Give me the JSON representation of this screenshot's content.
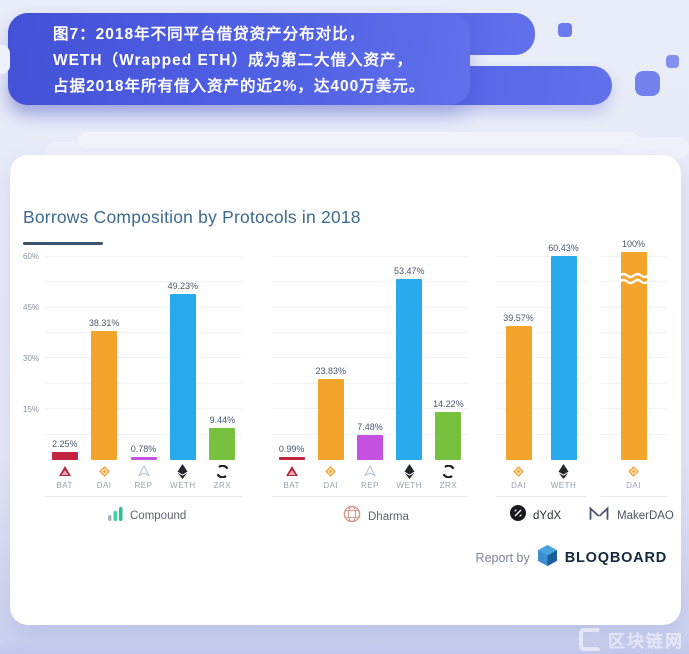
{
  "header": {
    "lines": [
      "图7：2018年不同平台借贷资产分布对比，",
      "WETH（Wrapped ETH）成为第二大借入资产，",
      "占据2018年所有借入资产的近2%，达400万美元。"
    ],
    "bg_color": "#4351d7"
  },
  "card": {
    "title": "Borrows Composition by Protocols in 2018"
  },
  "axis": {
    "ticks": [
      "60%",
      "45%",
      "30%",
      "15%"
    ]
  },
  "token_colors": {
    "BAT": "#c0233b",
    "DAI": "#f2a42c",
    "REP": "#c551e0",
    "WETH": "#29aaec",
    "ZRX": "#78c13e"
  },
  "chart_data": [
    {
      "type": "bar",
      "protocol": "Compound",
      "categories": [
        "BAT",
        "DAI",
        "REP",
        "WETH",
        "ZRX"
      ],
      "values": [
        2.25,
        38.31,
        0.78,
        49.23,
        9.44
      ],
      "labels": [
        "2.25%",
        "38.31%",
        "0.78%",
        "49.23%",
        "9.44%"
      ],
      "ylabel": "%",
      "ylim": [
        0,
        60
      ],
      "grid": true
    },
    {
      "type": "bar",
      "protocol": "Dharma",
      "categories": [
        "BAT",
        "DAI",
        "REP",
        "WETH",
        "ZRX"
      ],
      "values": [
        0.99,
        23.83,
        7.48,
        53.47,
        14.22
      ],
      "labels": [
        "0.99%",
        "23.83%",
        "7.48%",
        "53.47%",
        "14.22%"
      ],
      "ylabel": "%",
      "ylim": [
        0,
        60
      ],
      "grid": true
    },
    {
      "type": "bar",
      "protocol": "dYdX",
      "categories": [
        "DAI",
        "WETH"
      ],
      "values": [
        39.57,
        60.43
      ],
      "labels": [
        "39.57%",
        "60.43%"
      ],
      "ylabel": "%",
      "ylim": [
        0,
        60
      ],
      "grid": true
    },
    {
      "type": "bar",
      "protocol": "MakerDAO",
      "categories": [
        "DAI"
      ],
      "values": [
        100
      ],
      "labels": [
        "100%"
      ],
      "broken": true,
      "ylabel": "%",
      "ylim": [
        0,
        60
      ],
      "grid": true
    }
  ],
  "footer": {
    "report_by": "Report by",
    "brand": "BLOQBOARD"
  },
  "watermark": {
    "text": "区块链网"
  }
}
